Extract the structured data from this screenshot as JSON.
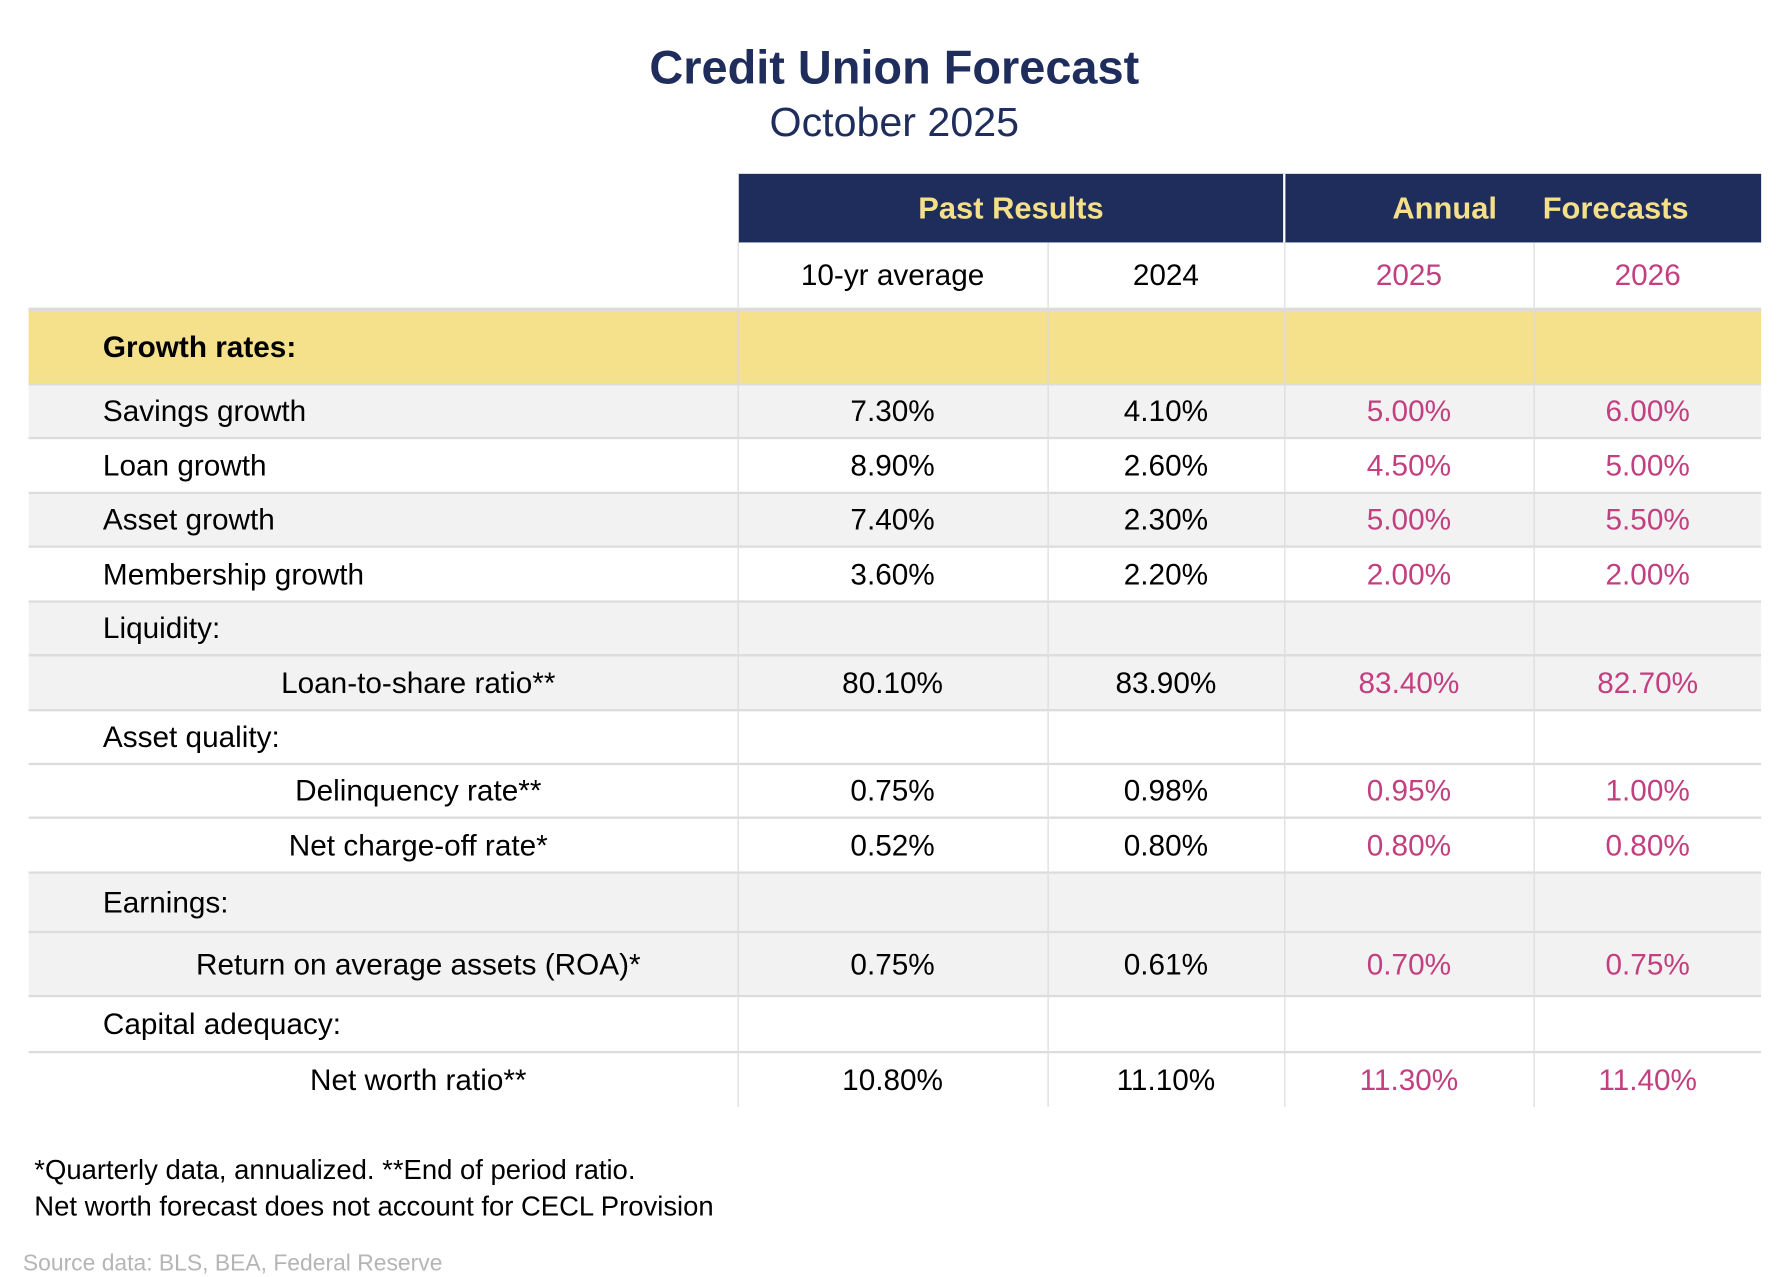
{
  "title": "Credit Union Forecast",
  "subtitle": "October 2025",
  "colors": {
    "navy": "#1f2d5c",
    "header_text": "#f5e08a",
    "section_band": "#f5e18c",
    "forecast_text": "#c2407f",
    "stripe": "#f2f2f2"
  },
  "header": {
    "past_results": "Past Results",
    "annual": "Annual",
    "forecasts": "Forecasts",
    "columns": [
      "10-yr average",
      "2024",
      "2025",
      "2026"
    ]
  },
  "rows": [
    {
      "label": "Growth rates:",
      "type": "section",
      "values": [
        "",
        "",
        "",
        ""
      ]
    },
    {
      "label": "Savings growth",
      "type": "cat",
      "values": [
        "7.30%",
        "4.10%",
        "5.00%",
        "6.00%"
      ]
    },
    {
      "label": "Loan growth",
      "type": "cat",
      "values": [
        "8.90%",
        "2.60%",
        "4.50%",
        "5.00%"
      ]
    },
    {
      "label": "Asset growth",
      "type": "cat",
      "values": [
        "7.40%",
        "2.30%",
        "5.00%",
        "5.50%"
      ]
    },
    {
      "label": "Membership growth",
      "type": "cat",
      "values": [
        "3.60%",
        "2.20%",
        "2.00%",
        "2.00%"
      ]
    },
    {
      "label": "Liquidity:",
      "type": "cat",
      "values": [
        "",
        "",
        "",
        ""
      ]
    },
    {
      "label": "Loan-to-share ratio**",
      "type": "item",
      "values": [
        "80.10%",
        "83.90%",
        "83.40%",
        "82.70%"
      ]
    },
    {
      "label": "Asset quality:",
      "type": "cat",
      "values": [
        "",
        "",
        "",
        ""
      ]
    },
    {
      "label": "Delinquency rate**",
      "type": "item",
      "values": [
        "0.75%",
        "0.98%",
        "0.95%",
        "1.00%"
      ]
    },
    {
      "label": "Net charge-off rate*",
      "type": "item",
      "values": [
        "0.52%",
        "0.80%",
        "0.80%",
        "0.80%"
      ]
    },
    {
      "label": "Earnings:",
      "type": "cat",
      "values": [
        "",
        "",
        "",
        ""
      ]
    },
    {
      "label": "Return on average assets (ROA)*",
      "type": "item",
      "values": [
        "0.75%",
        "0.61%",
        "0.70%",
        "0.75%"
      ]
    },
    {
      "label": "Capital adequacy:",
      "type": "cat",
      "values": [
        "",
        "",
        "",
        ""
      ]
    },
    {
      "label": "Net worth ratio**",
      "type": "item",
      "values": [
        "10.80%",
        "11.10%",
        "11.30%",
        "11.40%"
      ]
    }
  ],
  "footnotes": [
    "*Quarterly data, annualized.  **End of period ratio.",
    "Net worth forecast does not account for CECL Provision"
  ],
  "source": "Source data: BLS, BEA, Federal Reserve"
}
